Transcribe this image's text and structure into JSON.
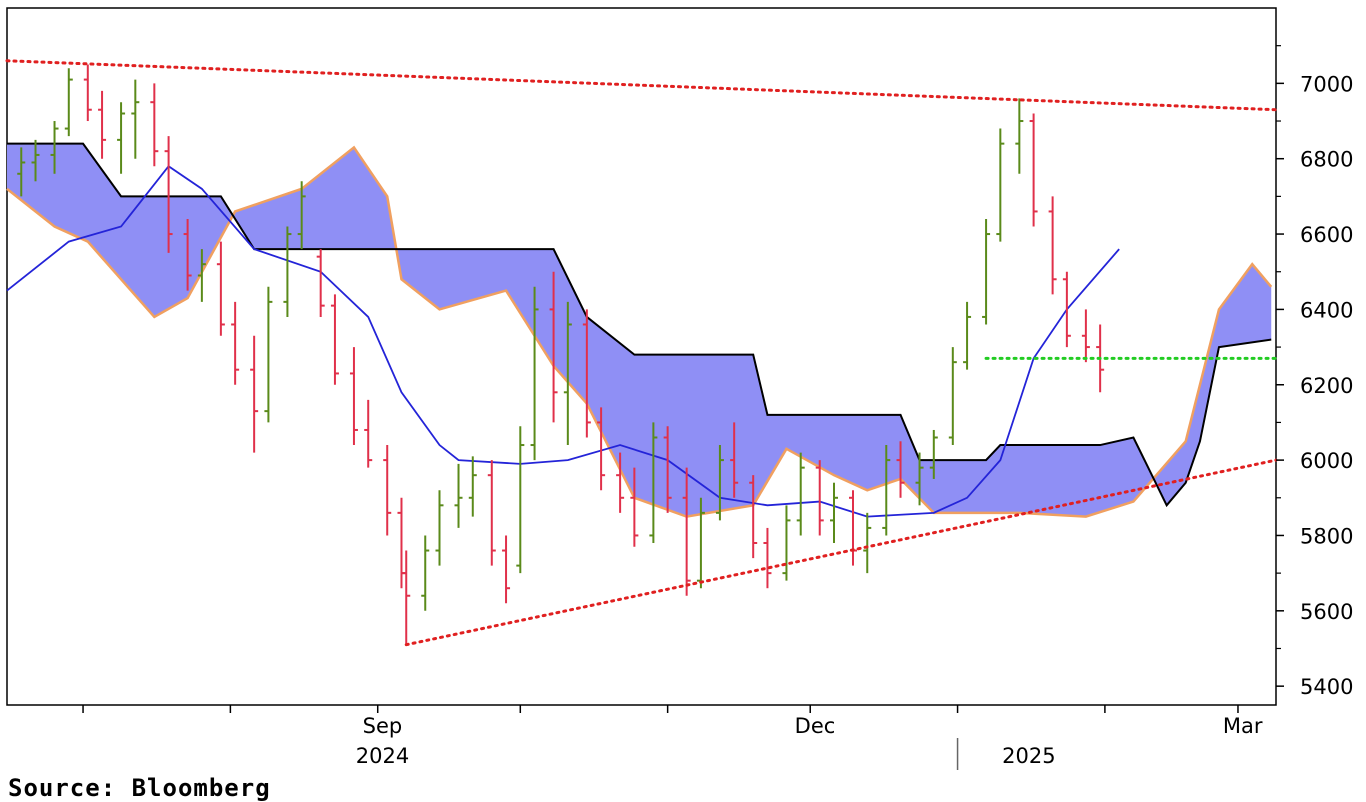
{
  "chart_data": {
    "type": "candlestick",
    "y_axis": {
      "position": "right",
      "ylim": [
        5350,
        7200
      ],
      "ticks": [
        5400,
        5600,
        5800,
        6000,
        6200,
        6400,
        6600,
        6800,
        7000
      ]
    },
    "x_axis": {
      "month_labels": [
        {
          "label": "Sep",
          "date": "2024-09-01"
        },
        {
          "label": "Dec",
          "date": "2024-12-01"
        },
        {
          "label": "Mar",
          "date": "2025-03-01"
        }
      ],
      "year_labels": [
        {
          "label": "2024",
          "date": "2024-09-01"
        },
        {
          "label": "2025",
          "date": "2025-01-15"
        }
      ],
      "xlim": [
        "2024-06-14",
        "2025-03-08"
      ]
    },
    "grid": false,
    "colors": {
      "up_bar": "#5a8a1a",
      "down_bar": "#e0304a",
      "doji_bar": "#1f2fcf",
      "cloud_fill": "#8f8ff5",
      "cloud_span_b": "#f0a060",
      "span_a": "#000000",
      "conversion_line": "#2424d8",
      "trendline": "#e02020",
      "support_line": "#22cc22"
    },
    "ohlc_bars": [
      [
        "2024-06-17",
        6760,
        6830,
        6700,
        6790
      ],
      [
        "2024-06-20",
        6790,
        6850,
        6740,
        6810
      ],
      [
        "2024-06-24",
        6810,
        6900,
        6760,
        6880
      ],
      [
        "2024-06-27",
        6880,
        7040,
        6860,
        7010
      ],
      [
        "2024-07-01",
        7010,
        7050,
        6900,
        6930
      ],
      [
        "2024-07-04",
        6930,
        6980,
        6800,
        6850
      ],
      [
        "2024-07-08",
        6850,
        6950,
        6760,
        6920
      ],
      [
        "2024-07-11",
        6920,
        7010,
        6800,
        6950
      ],
      [
        "2024-07-15",
        6950,
        7000,
        6780,
        6820
      ],
      [
        "2024-07-18",
        6820,
        6860,
        6550,
        6600
      ],
      [
        "2024-07-22",
        6600,
        6640,
        6450,
        6490
      ],
      [
        "2024-07-25",
        6490,
        6560,
        6420,
        6520
      ],
      [
        "2024-07-29",
        6520,
        6580,
        6330,
        6360
      ],
      [
        "2024-08-01",
        6360,
        6420,
        6200,
        6240
      ],
      [
        "2024-08-05",
        6240,
        6330,
        6020,
        6130
      ],
      [
        "2024-08-08",
        6130,
        6460,
        6100,
        6420
      ],
      [
        "2024-08-12",
        6420,
        6620,
        6380,
        6600
      ],
      [
        "2024-08-15",
        6600,
        6740,
        6560,
        6700
      ],
      [
        "2024-08-19",
        6540,
        6560,
        6380,
        6410
      ],
      [
        "2024-08-22",
        6410,
        6440,
        6200,
        6230
      ],
      [
        "2024-08-26",
        6230,
        6300,
        6040,
        6080
      ],
      [
        "2024-08-29",
        6080,
        6160,
        5980,
        6000
      ],
      [
        "2024-09-02",
        6000,
        6040,
        5800,
        5860
      ],
      [
        "2024-09-05",
        5860,
        5900,
        5660,
        5700
      ],
      [
        "2024-09-06",
        5700,
        5760,
        5510,
        5640
      ],
      [
        "2024-09-10",
        5640,
        5800,
        5600,
        5760
      ],
      [
        "2024-09-13",
        5760,
        5920,
        5720,
        5880
      ],
      [
        "2024-09-17",
        5880,
        5990,
        5820,
        5900
      ],
      [
        "2024-09-20",
        5900,
        6010,
        5850,
        5960
      ],
      [
        "2024-09-24",
        5960,
        6000,
        5720,
        5760
      ],
      [
        "2024-09-27",
        5760,
        5800,
        5620,
        5660
      ],
      [
        "2024-09-30",
        5720,
        6090,
        5700,
        6040
      ],
      [
        "2024-10-03",
        6040,
        6460,
        6000,
        6400
      ],
      [
        "2024-10-07",
        6400,
        6500,
        6100,
        6180
      ],
      [
        "2024-10-10",
        6180,
        6420,
        6040,
        6360
      ],
      [
        "2024-10-14",
        6360,
        6400,
        6060,
        6100
      ],
      [
        "2024-10-17",
        6100,
        6140,
        5920,
        5960
      ],
      [
        "2024-10-21",
        5960,
        6020,
        5860,
        5900
      ],
      [
        "2024-10-24",
        5900,
        5980,
        5770,
        5800
      ],
      [
        "2024-10-28",
        5800,
        6100,
        5780,
        6060
      ],
      [
        "2024-10-31",
        6060,
        6090,
        5860,
        5900
      ],
      [
        "2024-11-04",
        5900,
        5980,
        5640,
        5680
      ],
      [
        "2024-11-07",
        5680,
        5900,
        5660,
        5860
      ],
      [
        "2024-11-11",
        5860,
        6040,
        5840,
        6000
      ],
      [
        "2024-11-14",
        6000,
        6100,
        5900,
        5940
      ],
      [
        "2024-11-18",
        5940,
        5960,
        5740,
        5780
      ],
      [
        "2024-11-21",
        5780,
        5820,
        5660,
        5700
      ],
      [
        "2024-11-25",
        5700,
        5880,
        5680,
        5840
      ],
      [
        "2024-11-28",
        5840,
        6020,
        5800,
        5980
      ],
      [
        "2024-12-02",
        5980,
        6000,
        5800,
        5840
      ],
      [
        "2024-12-05",
        5840,
        5940,
        5780,
        5900
      ],
      [
        "2024-12-09",
        5900,
        5920,
        5720,
        5760
      ],
      [
        "2024-12-12",
        5760,
        5860,
        5700,
        5820
      ],
      [
        "2024-12-16",
        5820,
        6040,
        5800,
        6000
      ],
      [
        "2024-12-19",
        6000,
        6050,
        5900,
        5940
      ],
      [
        "2024-12-23",
        5940,
        6020,
        5880,
        5980
      ],
      [
        "2024-12-26",
        5980,
        6080,
        5950,
        6060
      ],
      [
        "2024-12-30",
        6060,
        6300,
        6040,
        6260
      ],
      [
        "2025-01-02",
        6260,
        6420,
        6240,
        6380
      ],
      [
        "2025-01-06",
        6380,
        6640,
        6360,
        6600
      ],
      [
        "2025-01-09",
        6600,
        6880,
        6580,
        6840
      ],
      [
        "2025-01-13",
        6840,
        6960,
        6760,
        6900
      ],
      [
        "2025-01-16",
        6900,
        6920,
        6620,
        6660
      ],
      [
        "2025-01-20",
        6660,
        6700,
        6440,
        6480
      ],
      [
        "2025-01-23",
        6480,
        6500,
        6300,
        6330
      ],
      [
        "2025-01-27",
        6330,
        6400,
        6260,
        6300
      ],
      [
        "2025-01-30",
        6300,
        6360,
        6180,
        6240
      ]
    ],
    "cloud": {
      "span_a": [
        [
          "2024-06-14",
          6840
        ],
        [
          "2024-06-30",
          6840
        ],
        [
          "2024-07-08",
          6700
        ],
        [
          "2024-07-29",
          6700
        ],
        [
          "2024-08-05",
          6560
        ],
        [
          "2024-09-02",
          6560
        ],
        [
          "2024-10-07",
          6560
        ],
        [
          "2024-10-14",
          6380
        ],
        [
          "2024-10-24",
          6280
        ],
        [
          "2024-11-18",
          6280
        ],
        [
          "2024-11-21",
          6120
        ],
        [
          "2024-12-19",
          6120
        ],
        [
          "2024-12-23",
          6000
        ],
        [
          "2025-01-06",
          6000
        ],
        [
          "2025-01-09",
          6040
        ],
        [
          "2025-01-30",
          6040
        ],
        [
          "2025-02-06",
          6060
        ],
        [
          "2025-02-13",
          5880
        ],
        [
          "2025-02-17",
          5940
        ],
        [
          "2025-02-20",
          6050
        ],
        [
          "2025-02-24",
          6300
        ],
        [
          "2025-03-07",
          6320
        ]
      ],
      "span_b": [
        [
          "2024-06-14",
          6720
        ],
        [
          "2024-06-24",
          6620
        ],
        [
          "2024-07-01",
          6580
        ],
        [
          "2024-07-15",
          6380
        ],
        [
          "2024-07-22",
          6430
        ],
        [
          "2024-08-01",
          6660
        ],
        [
          "2024-08-15",
          6720
        ],
        [
          "2024-08-26",
          6830
        ],
        [
          "2024-09-02",
          6700
        ],
        [
          "2024-09-05",
          6480
        ],
        [
          "2024-09-13",
          6400
        ],
        [
          "2024-09-27",
          6450
        ],
        [
          "2024-10-07",
          6250
        ],
        [
          "2024-10-14",
          6150
        ],
        [
          "2024-10-24",
          5900
        ],
        [
          "2024-11-04",
          5850
        ],
        [
          "2024-11-18",
          5880
        ],
        [
          "2024-11-25",
          6030
        ],
        [
          "2024-12-05",
          5960
        ],
        [
          "2024-12-12",
          5920
        ],
        [
          "2024-12-19",
          5950
        ],
        [
          "2024-12-26",
          5860
        ],
        [
          "2025-01-13",
          5860
        ],
        [
          "2025-01-27",
          5850
        ],
        [
          "2025-02-06",
          5890
        ],
        [
          "2025-02-17",
          6050
        ],
        [
          "2025-02-24",
          6400
        ],
        [
          "2025-03-03",
          6520
        ],
        [
          "2025-03-07",
          6460
        ]
      ]
    },
    "conversion_line": [
      [
        "2024-06-14",
        6450
      ],
      [
        "2024-06-27",
        6580
      ],
      [
        "2024-07-08",
        6620
      ],
      [
        "2024-07-18",
        6780
      ],
      [
        "2024-07-25",
        6720
      ],
      [
        "2024-08-05",
        6560
      ],
      [
        "2024-08-19",
        6500
      ],
      [
        "2024-08-29",
        6380
      ],
      [
        "2024-09-05",
        6180
      ],
      [
        "2024-09-13",
        6040
      ],
      [
        "2024-09-17",
        6000
      ],
      [
        "2024-09-30",
        5990
      ],
      [
        "2024-10-10",
        6000
      ],
      [
        "2024-10-21",
        6040
      ],
      [
        "2024-10-31",
        6000
      ],
      [
        "2024-11-11",
        5900
      ],
      [
        "2024-11-21",
        5880
      ],
      [
        "2024-12-02",
        5890
      ],
      [
        "2024-12-12",
        5850
      ],
      [
        "2024-12-26",
        5860
      ],
      [
        "2025-01-02",
        5900
      ],
      [
        "2025-01-09",
        6000
      ],
      [
        "2025-01-16",
        6270
      ],
      [
        "2025-01-23",
        6400
      ],
      [
        "2025-02-03",
        6560
      ]
    ],
    "trendlines": [
      {
        "style": "dotted",
        "color": "#e02020",
        "points": [
          [
            "2024-06-14",
            7060
          ],
          [
            "2025-03-08",
            6930
          ]
        ]
      },
      {
        "style": "dotted",
        "color": "#e02020",
        "points": [
          [
            "2024-09-06",
            5510
          ],
          [
            "2025-03-08",
            6000
          ]
        ]
      }
    ],
    "support_line": {
      "style": "dotted",
      "color": "#22cc22",
      "value": 6270,
      "from": "2025-01-06",
      "to": "2025-03-08"
    }
  },
  "source": "Source: Bloomberg"
}
